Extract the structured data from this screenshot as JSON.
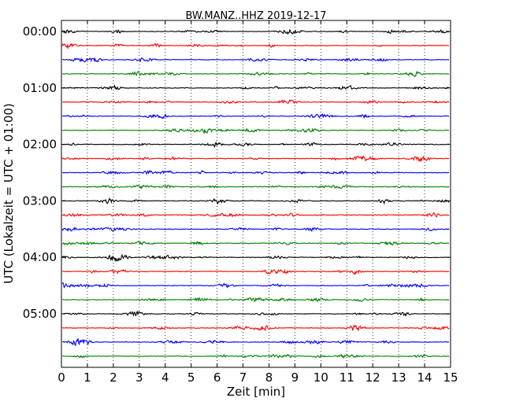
{
  "chart_data": {
    "type": "line",
    "title": "BW.MANZ..HHZ 2019-12-17",
    "xlabel": "Zeit  [min]",
    "ylabel": "UTC (Lokalzeit = UTC + 01:00)",
    "xlim": [
      0,
      15
    ],
    "x_ticks": [
      0,
      1,
      2,
      3,
      4,
      5,
      6,
      7,
      8,
      9,
      10,
      11,
      12,
      13,
      14,
      15
    ],
    "y_tick_labels": [
      "00:00",
      "01:00",
      "02:00",
      "03:00",
      "04:00",
      "05:00"
    ],
    "trace_interval_min": 15,
    "trace_count": 24,
    "grid": "vertical dotted",
    "color_cycle": [
      "#000000",
      "#ff0000",
      "#0000ff",
      "#008000"
    ]
  }
}
